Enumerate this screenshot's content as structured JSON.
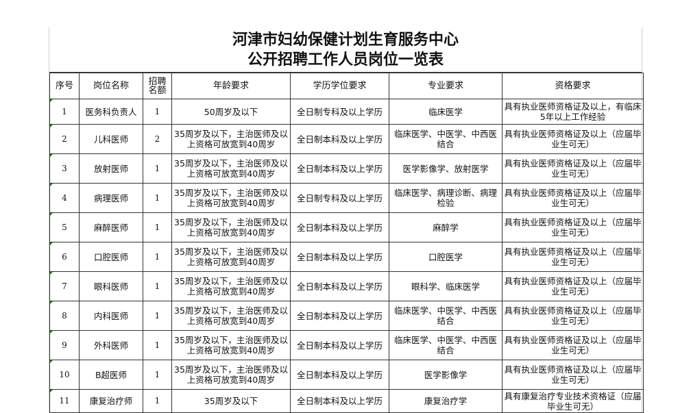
{
  "title": {
    "line1": "河津市妇幼保健计划生育服务中心",
    "line2": "公开招聘工作人员岗位一览表"
  },
  "headers": [
    "序号",
    "岗位名称",
    "招聘名额",
    "年龄要求",
    "学历学位要求",
    "专业要求",
    "资格要求"
  ],
  "rows": [
    [
      "1",
      "医务科负责人",
      "1",
      "50周岁及以下",
      "全日制专科及以上学历",
      "临床医学",
      "具有执业医师资格证及以上，有临床5年以上工作经验"
    ],
    [
      "2",
      "儿科医师",
      "2",
      "35周岁及以下，主治医师及以上资格可放宽到40周岁",
      "全日制本科及以上学历",
      "临床医学、中医学、中西医结合",
      "具有执业医师资格证及以上（应届毕业生可无）"
    ],
    [
      "3",
      "放射医师",
      "1",
      "35周岁及以下，主治医师及以上资格可放宽到40周岁",
      "全日制本科及以上学历",
      "医学影像学、放射医学",
      "具有执业医师资格证及以上（应届毕业生可无）"
    ],
    [
      "4",
      "病理医师",
      "1",
      "35周岁及以下，主治医师及以上资格可放宽到40周岁",
      "全日制专科及以上学历",
      "临床医学、病理诊断、病理检验",
      "具有执业医师资格证及以上（应届毕业生可无）"
    ],
    [
      "5",
      "麻醉医师",
      "1",
      "35周岁及以下，主治医师及以上资格可放宽到40周岁",
      "全日制本科及以上学历",
      "麻醉学",
      "具有执业医师资格证及以上（应届毕业生可无）"
    ],
    [
      "6",
      "口腔医师",
      "1",
      "35周岁及以下，主治医师及以上资格可放宽到40周岁",
      "全日制本科及以上学历",
      "口腔医学",
      "具有执业医师资格证及以上（应届毕业生可无）"
    ],
    [
      "7",
      "眼科医师",
      "1",
      "35周岁及以下，主治医师及以上资格可放宽到40周岁",
      "全日制本科及以上学历",
      "眼科学、临床医学",
      "具有执业医师资格证及以上（应届毕业生可无）"
    ],
    [
      "8",
      "内科医师",
      "1",
      "35周岁及以下，主治医师及以上资格可放宽到40周岁",
      "全日制本科及以上学历",
      "临床医学、中医学、中西医结合",
      "具有执业医师资格证及以上（应届毕业生可无）"
    ],
    [
      "9",
      "外科医师",
      "1",
      "35周岁及以下，主治医师及以上资格可放宽到40周岁",
      "全日制本科及以上学历",
      "临床医学、中医学、中西医结合",
      "具有执业医师资格证及以上（应届毕业生可无）"
    ],
    [
      "10",
      "B超医师",
      "1",
      "35周岁及以下，主治医师及以上资格可放宽到40周岁",
      "全日制本科及以上学历",
      "医学影像学",
      "具有执业医师资格证及以上（应届毕业生可无）"
    ],
    [
      "11",
      "康复治疗师",
      "1",
      "35周岁及以下",
      "全日制本科及以上学历",
      "康复治疗学",
      "具有康复治疗专业技术资格证（应届毕业生可无）"
    ]
  ]
}
